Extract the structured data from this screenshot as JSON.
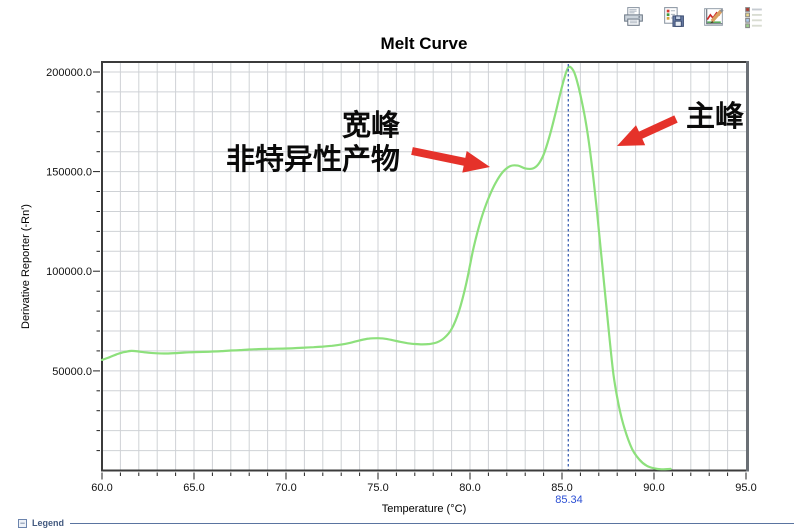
{
  "toolbar": {
    "buttons": [
      {
        "name": "print",
        "icon": "printer-icon"
      },
      {
        "name": "export-data",
        "icon": "export-plate-icon"
      },
      {
        "name": "graph-settings",
        "icon": "chart-edit-icon"
      },
      {
        "name": "show-legend",
        "icon": "legend-list-icon"
      }
    ]
  },
  "chart_data": {
    "type": "line",
    "title": "Melt Curve",
    "xlabel": "Temperature (°C)",
    "ylabel": "Derivative Reporter (-Rn')",
    "xlim": [
      60.0,
      95.0
    ],
    "ylim": [
      0,
      205000
    ],
    "x_tick_major": 5.0,
    "x_tick_minor": 1.0,
    "y_tick_major": 50000,
    "y_tick_minor": 10000,
    "x_tick_labels": [
      "60.0",
      "65.0",
      "70.0",
      "75.0",
      "80.0",
      "85.0",
      "90.0",
      "95.0"
    ],
    "y_tick_labels": [
      "50000.0",
      "100000.0",
      "150000.0",
      "200000.0"
    ],
    "grid": true,
    "grid_color": "#cfd2d6",
    "legend_position": "none",
    "series": [
      {
        "name": "melt-curve",
        "color": "#8DE07C",
        "points": [
          [
            60.0,
            55500
          ],
          [
            60.4,
            56800
          ],
          [
            60.8,
            58300
          ],
          [
            61.2,
            59400
          ],
          [
            61.6,
            60000
          ],
          [
            62.0,
            59700
          ],
          [
            62.5,
            59100
          ],
          [
            63.0,
            58800
          ],
          [
            63.5,
            58700
          ],
          [
            64.0,
            58900
          ],
          [
            64.5,
            59200
          ],
          [
            65.0,
            59400
          ],
          [
            65.5,
            59500
          ],
          [
            66.0,
            59700
          ],
          [
            66.5,
            59900
          ],
          [
            67.0,
            60200
          ],
          [
            67.5,
            60400
          ],
          [
            68.0,
            60700
          ],
          [
            68.5,
            60900
          ],
          [
            69.0,
            61000
          ],
          [
            69.5,
            61100
          ],
          [
            70.0,
            61200
          ],
          [
            70.5,
            61400
          ],
          [
            71.0,
            61700
          ],
          [
            71.5,
            61900
          ],
          [
            72.0,
            62200
          ],
          [
            72.5,
            62600
          ],
          [
            73.0,
            63200
          ],
          [
            73.5,
            64100
          ],
          [
            74.0,
            65300
          ],
          [
            74.5,
            66200
          ],
          [
            75.0,
            66400
          ],
          [
            75.4,
            66100
          ],
          [
            75.8,
            65400
          ],
          [
            76.2,
            64600
          ],
          [
            76.6,
            63900
          ],
          [
            77.0,
            63500
          ],
          [
            77.4,
            63300
          ],
          [
            77.8,
            63500
          ],
          [
            78.2,
            64300
          ],
          [
            78.6,
            66500
          ],
          [
            79.0,
            71000
          ],
          [
            79.4,
            80000
          ],
          [
            79.8,
            94000
          ],
          [
            80.2,
            112000
          ],
          [
            80.6,
            126000
          ],
          [
            81.0,
            136500
          ],
          [
            81.4,
            144500
          ],
          [
            81.8,
            150000
          ],
          [
            82.2,
            152800
          ],
          [
            82.6,
            153000
          ],
          [
            83.0,
            151600
          ],
          [
            83.4,
            151500
          ],
          [
            83.7,
            153500
          ],
          [
            84.0,
            158500
          ],
          [
            84.3,
            167000
          ],
          [
            84.6,
            177500
          ],
          [
            84.9,
            189000
          ],
          [
            85.1,
            196000
          ],
          [
            85.34,
            202300
          ],
          [
            85.6,
            201000
          ],
          [
            85.8,
            196000
          ],
          [
            86.0,
            188500
          ],
          [
            86.3,
            174500
          ],
          [
            86.6,
            155000
          ],
          [
            86.9,
            130000
          ],
          [
            87.2,
            102000
          ],
          [
            87.5,
            74000
          ],
          [
            87.8,
            48000
          ],
          [
            88.1,
            32000
          ],
          [
            88.4,
            21000
          ],
          [
            88.8,
            11000
          ],
          [
            89.2,
            5500
          ],
          [
            89.6,
            2400
          ],
          [
            90.0,
            1100
          ],
          [
            90.4,
            600
          ],
          [
            90.9,
            800
          ]
        ]
      }
    ],
    "peak_marker": {
      "x": 85.34,
      "label": "85.34",
      "line_color": "#3F63B5",
      "label_color": "#2B4FD4"
    }
  },
  "annotations": {
    "broad_peak": {
      "line1": "宽峰",
      "line2": "非特异性产物",
      "arrow_color": "#E5322A"
    },
    "main_peak": {
      "text": "主峰",
      "arrow_color": "#E5322A"
    }
  },
  "legend_panel": {
    "collapse_symbol": "−",
    "label": "Legend",
    "color": "#42597F"
  }
}
